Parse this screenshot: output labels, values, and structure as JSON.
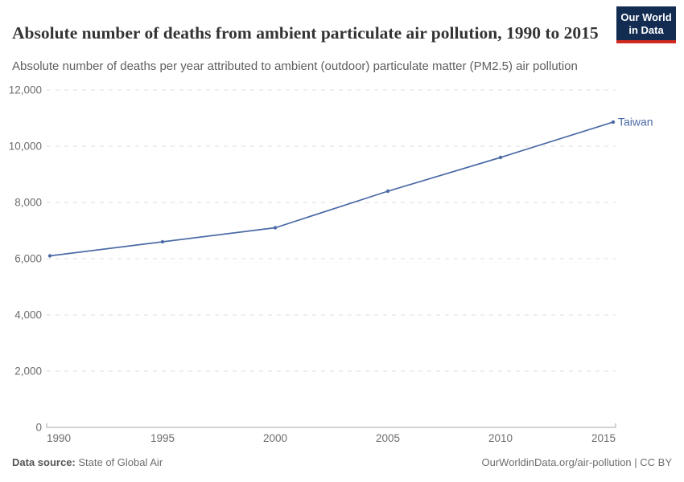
{
  "header": {
    "title": "Absolute number of deaths from ambient particulate air pollution, 1990 to 2015",
    "subtitle": "Absolute number of deaths per year attributed to ambient (outdoor) particulate matter (PM2.5) air pollution",
    "logo": {
      "line1": "Our World",
      "line2": "in Data",
      "bg_color": "#132c52",
      "accent_color": "#d02a20"
    }
  },
  "chart_data": {
    "type": "line",
    "title": "Absolute number of deaths from ambient particulate air pollution, 1990 to 2015",
    "subtitle": "Absolute number of deaths per year attributed to ambient (outdoor) particulate matter (PM2.5) air pollution",
    "x": [
      1990,
      1995,
      2000,
      2005,
      2010,
      2015
    ],
    "xtick_labels": [
      "1990",
      "1995",
      "2000",
      "2005",
      "2010",
      "2015"
    ],
    "series": [
      {
        "name": "Taiwan",
        "color": "#4b6ba6",
        "values": [
          6100,
          6600,
          7100,
          8400,
          9600,
          10860
        ]
      }
    ],
    "xlim": [
      1990,
      2015
    ],
    "ylim": [
      0,
      12000
    ],
    "yticks": [
      0,
      2000,
      4000,
      6000,
      8000,
      10000,
      12000
    ],
    "ytick_labels": [
      "0",
      "2,000",
      "4,000",
      "6,000",
      "8,000",
      "10,000",
      "12,000"
    ],
    "xlabel": "",
    "ylabel": "",
    "grid": "horizontal-dashed",
    "grid_color": "#dcdcdc",
    "axis_color": "#a5a5a5",
    "legend_position": "end-of-line-label"
  },
  "footer": {
    "datasource_label": "Data source:",
    "datasource_value": " State of Global Air",
    "attribution": "OurWorldinData.org/air-pollution | CC BY"
  }
}
